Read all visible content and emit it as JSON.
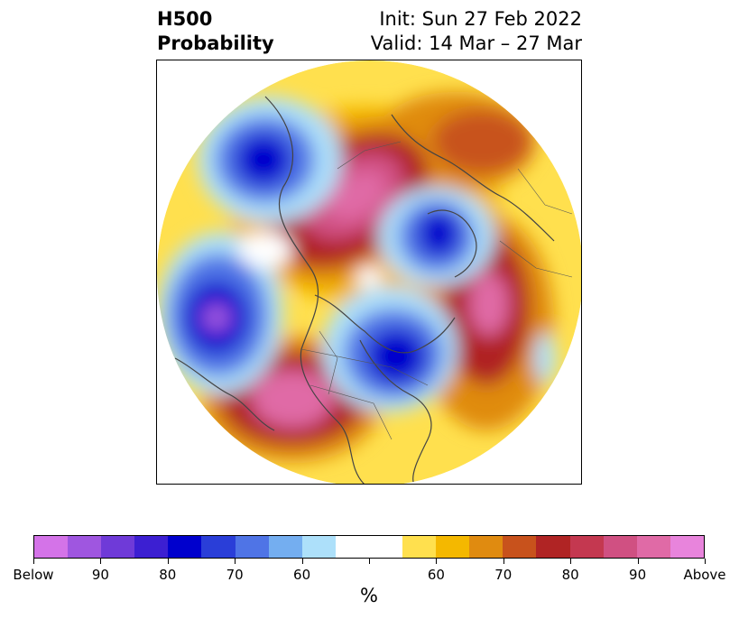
{
  "title": {
    "left_line1": "H500",
    "left_line2": "Probability",
    "right_line1": "Init: Sun 27 Feb 2022",
    "right_line2": "Valid: 14 Mar – 27 Mar"
  },
  "colorbar": {
    "colors": [
      "#d473e8",
      "#9f56e0",
      "#6f3ad8",
      "#3c1fd2",
      "#0000cd",
      "#2a3ed8",
      "#4f74e6",
      "#74aef0",
      "#ade0fa",
      "#ffffff",
      "#ffffff",
      "#ffe04e",
      "#f4b800",
      "#e08b10",
      "#c8521c",
      "#b02424",
      "#c43850",
      "#d05082",
      "#e06aa6",
      "#e884dc"
    ],
    "tick_labels": [
      "Below",
      "90",
      "80",
      "70",
      "60",
      "",
      "60",
      "70",
      "80",
      "90",
      "Above"
    ],
    "units": "%"
  },
  "map": {
    "projection": "polar-stereographic-north",
    "colors": {
      "below_strong": "#0000cd",
      "below_mid": "#4f74e6",
      "below_weak": "#ade0fa",
      "above_weak": "#ffe04e",
      "above_mid": "#e08b10",
      "above_strong": "#b02424",
      "above_extreme": "#e06aa6"
    }
  }
}
